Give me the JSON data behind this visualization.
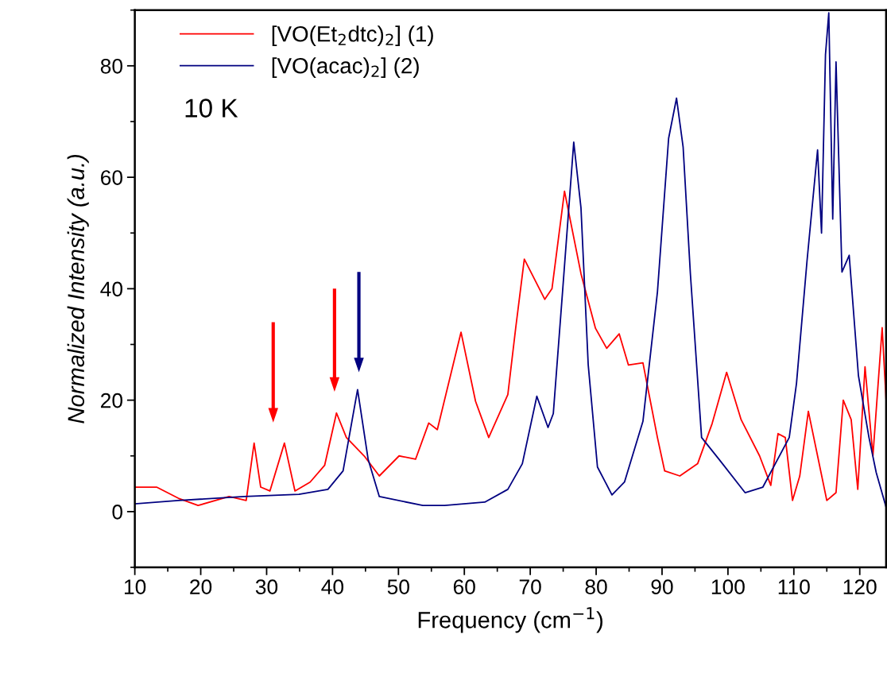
{
  "chart_data": {
    "type": "line",
    "xlabel": "Frequency (cm$^{−1}$)",
    "ylabel": "Normalized Intensity (a.u.)",
    "annotations": [
      "10 K"
    ],
    "xlim": [
      10,
      124
    ],
    "xticks": [
      10,
      20,
      30,
      40,
      50,
      60,
      70,
      80,
      90,
      100,
      110,
      120
    ],
    "ylim": [
      -10,
      90
    ],
    "yticks": [
      0,
      20,
      40,
      60,
      80
    ],
    "grid": false,
    "legend": "top left",
    "marker": "none",
    "line_style": "solid",
    "series": [
      {
        "name": "[VO(Et$_{2}$dtc)$_{2}$] (1)",
        "color": "#ff0000",
        "x": [
          10,
          13.3,
          16.6,
          19.6,
          24.3,
          26.9,
          28.1,
          29.1,
          30.5,
          32.7,
          34.3,
          36.6,
          38.8,
          40.6,
          42.1,
          44.8,
          47.1,
          50.1,
          52.6,
          54.6,
          55.9,
          59.5,
          61.7,
          63.7,
          66.6,
          67.8,
          69.1,
          72.2,
          73.3,
          75.2,
          77.7,
          79.9,
          81.6,
          83.5,
          84.9,
          87.1,
          89.3,
          90.4,
          92.7,
          95.4,
          97.6,
          99.8,
          102,
          104.8,
          106.5,
          107.6,
          108.7,
          109.8,
          110.9,
          112.2,
          113.6,
          115,
          116.4,
          117.5,
          118.7,
          119.7,
          120.8,
          122,
          123.4,
          124
        ],
        "values": [
          4.4,
          4.4,
          2.4,
          1.1,
          2.7,
          2,
          12.3,
          4.4,
          3.7,
          12.3,
          3.7,
          5.3,
          8.3,
          17.7,
          13.3,
          10,
          6.4,
          10,
          9.4,
          15.9,
          14.7,
          32.2,
          19.8,
          13.3,
          21,
          33,
          45.3,
          38.1,
          40,
          57.5,
          42.7,
          32.9,
          29.3,
          31.9,
          26.3,
          26.7,
          13.3,
          7.3,
          6.4,
          8.6,
          15.8,
          25,
          16.5,
          10,
          4.7,
          14,
          13.3,
          2,
          6.4,
          18,
          10,
          2,
          3.4,
          20,
          16.5,
          4,
          26,
          10,
          33,
          20
        ]
      },
      {
        "name": "[VO(acac)$_{2}$] (2)",
        "color": "#000080",
        "x": [
          10,
          16.6,
          26.6,
          34.9,
          39.3,
          41.6,
          43.8,
          45.4,
          47.1,
          53.7,
          57,
          63.1,
          66.6,
          68.8,
          71,
          72.7,
          73.5,
          74.9,
          76.6,
          77.7,
          78.8,
          80.2,
          82.4,
          84.3,
          87.1,
          89.3,
          91,
          92.2,
          93.2,
          94.3,
          96,
          98.7,
          102.6,
          105.3,
          109.3,
          110.4,
          112,
          113.6,
          114.2,
          114.8,
          115.3,
          115.9,
          116.4,
          117.3,
          118.4,
          119.8,
          121.4,
          122.5,
          124
        ],
        "values": [
          1.4,
          2,
          2.7,
          3.1,
          4,
          7.3,
          21.9,
          9.4,
          2.7,
          1.1,
          1.1,
          1.7,
          4,
          8.6,
          20.7,
          15.1,
          17.6,
          39.4,
          66.3,
          54.5,
          26.3,
          8,
          3,
          5.3,
          16.2,
          39.4,
          67,
          74.2,
          65.4,
          42.7,
          13.3,
          9.3,
          3.4,
          4.4,
          13.3,
          23,
          45,
          64.9,
          50,
          82,
          89.5,
          52.5,
          80.7,
          43,
          46,
          24.4,
          13.3,
          7,
          0.8
        ]
      }
    ]
  }
}
